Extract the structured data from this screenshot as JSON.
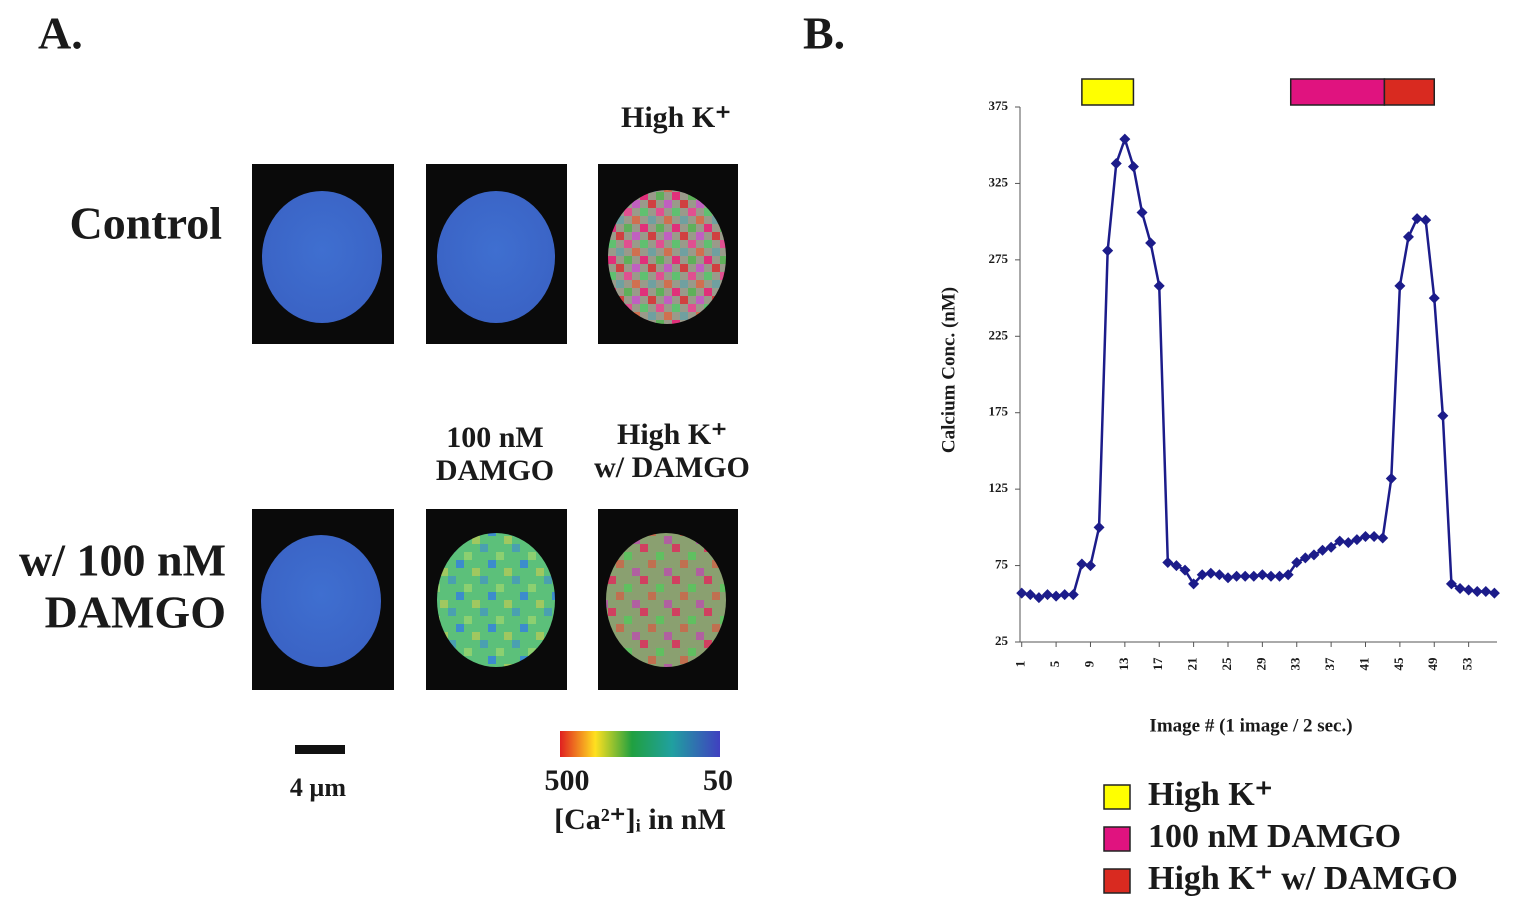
{
  "panel_a": {
    "label": "A.",
    "row_labels": [
      [
        "Control"
      ],
      [
        "w/ 100 nM",
        "DAMGO"
      ]
    ],
    "column_labels": [
      [
        "High K⁺"
      ],
      [
        "100 nM",
        "DAMGO"
      ],
      [
        "High K⁺",
        "w/ DAMGO"
      ]
    ],
    "scale_bar": "4 µm",
    "colorbar": {
      "range": [
        500,
        50
      ],
      "title": "[Ca²⁺]ᵢ in nM"
    }
  },
  "panel_b_label": "B.",
  "chart_data": {
    "type": "line",
    "x_label": "Image # (1 image / 2 sec.)",
    "y_label": "Calcium Conc. (nM)",
    "x": [
      1,
      2,
      3,
      4,
      5,
      6,
      7,
      8,
      9,
      10,
      11,
      12,
      13,
      14,
      15,
      16,
      17,
      18,
      19,
      20,
      21,
      22,
      23,
      24,
      25,
      26,
      27,
      28,
      29,
      30,
      31,
      32,
      33,
      34,
      35,
      36,
      37,
      38,
      39,
      40,
      41,
      42,
      43,
      44,
      45,
      46,
      47,
      48,
      49,
      50,
      51,
      52,
      53,
      54,
      55,
      56
    ],
    "values": [
      57,
      56,
      54,
      56,
      55,
      56,
      56,
      76,
      75,
      100,
      281,
      338,
      354,
      336,
      306,
      286,
      258,
      77,
      75,
      72,
      63,
      69,
      70,
      69,
      67,
      68,
      68,
      68,
      69,
      68,
      68,
      69,
      77,
      80,
      82,
      85,
      87,
      91,
      90,
      92,
      94,
      94,
      93,
      132,
      258,
      290,
      302,
      301,
      250,
      173,
      63,
      60,
      59,
      58,
      58,
      57
    ],
    "color": "#1c1c8a",
    "marker": "diamond",
    "xlim": [
      0.8,
      56.3
    ],
    "ylim": [
      25,
      375
    ],
    "xticks": [
      1,
      5,
      9,
      13,
      17,
      21,
      25,
      29,
      33,
      37,
      41,
      45,
      49,
      53
    ],
    "yticks": [
      25,
      75,
      125,
      175,
      225,
      275,
      325,
      375
    ],
    "legend": [
      {
        "label": "High K⁺",
        "color": "#ffff00",
        "start": 8,
        "end": 14
      },
      {
        "label": "100 nM DAMGO",
        "color": "#e0137f",
        "start": 32.3,
        "end": 43.2
      },
      {
        "label": "High K⁺ w/ DAMGO",
        "color": "#d92a20",
        "start": 43.2,
        "end": 49
      }
    ]
  }
}
